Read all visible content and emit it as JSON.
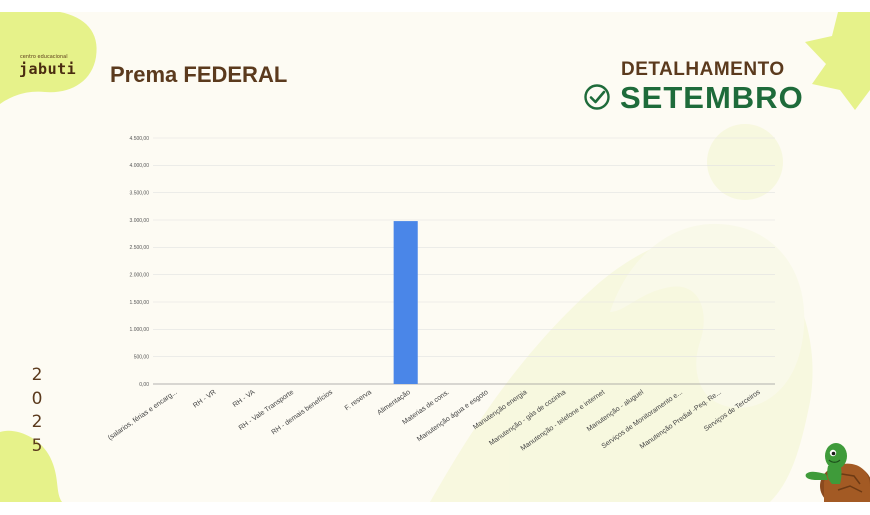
{
  "header": {
    "logo_small": "centro educacional",
    "logo_big": "jabuti",
    "title": "Prema FEDERAL",
    "detail_label": "DETALHAMENTO",
    "month": "SETEMBRO",
    "year_digits": [
      "2",
      "0",
      "2",
      "5"
    ]
  },
  "icons": {
    "check": "check-circle-icon",
    "turtle": "turtle-mascot"
  },
  "colors": {
    "background": "#fdfbf3",
    "accent_green": "#e6f28a",
    "brown": "#5b3a1d",
    "dark_green": "#1e6b3a",
    "bar": "#4a86e8"
  },
  "chart_data": {
    "type": "bar",
    "categories": [
      "(salarios, férias e encarg...",
      "RH - VR",
      "RH - VA",
      "RH - Vale Transporte",
      "RH - demais benefícios",
      "F. reserva",
      "Alimentação",
      "Materias de cons.",
      "Manutenção água e esgoto",
      "Manutenção energia",
      "Manutenção - gás de cozinha",
      "Manutenção - telefone e internet",
      "Manutenção - aluguel",
      "Serviços de Monitoramento e...",
      "Manutenção Predial -Peq. Re...",
      "Serviços de Terceiros"
    ],
    "values": [
      0,
      0,
      0,
      0,
      0,
      0,
      2980,
      0,
      0,
      0,
      0,
      0,
      0,
      0,
      0,
      0
    ],
    "ylim": [
      0,
      4500
    ],
    "yticks": [
      "0,00",
      "500,00",
      "1.000,00",
      "1.500,00",
      "2.000,00",
      "2.500,00",
      "3.000,00",
      "3.500,00",
      "4.000,00",
      "4.500,00"
    ],
    "title": "",
    "xlabel": "",
    "ylabel": "",
    "grid": true
  }
}
